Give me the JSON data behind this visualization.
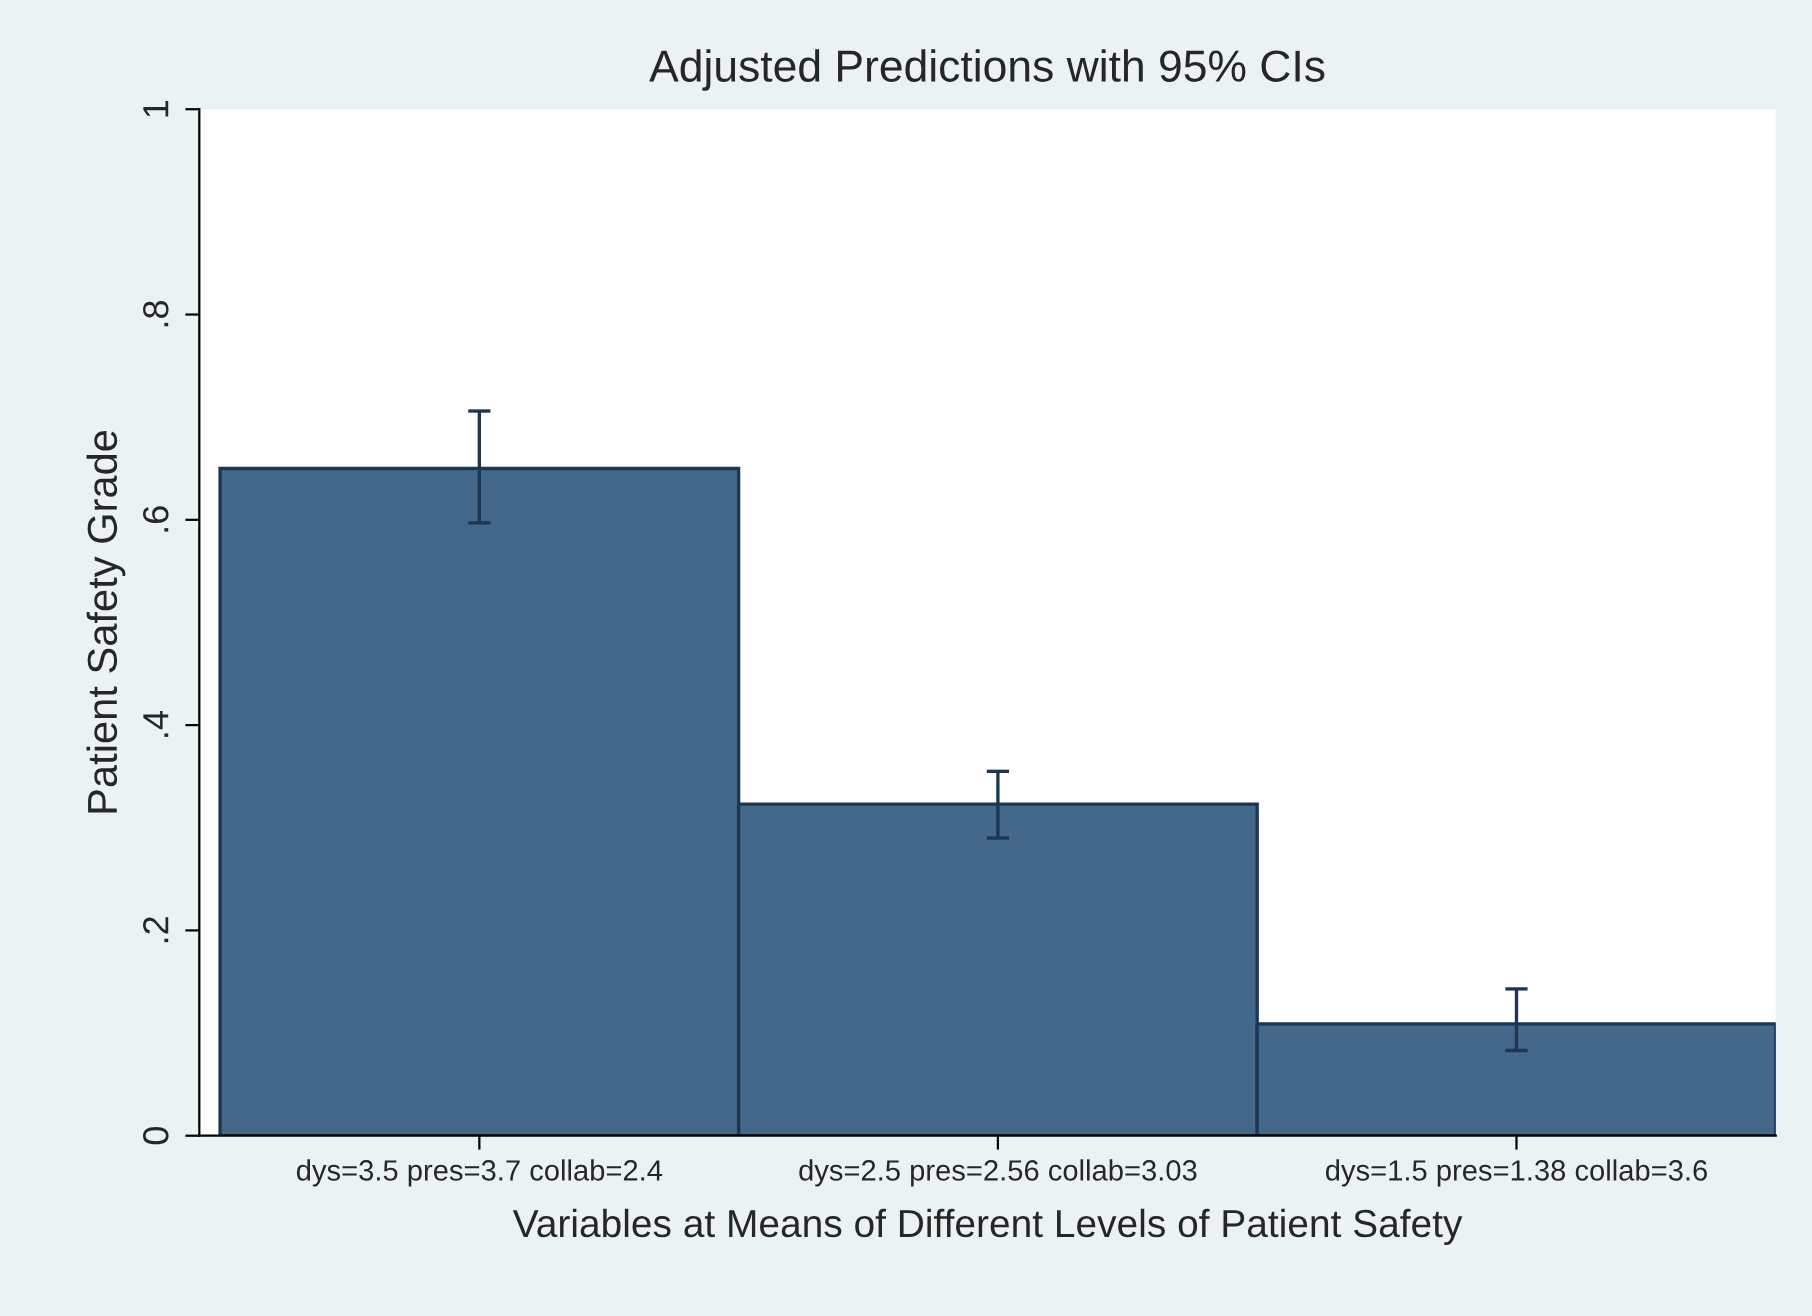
{
  "chart_data": {
    "type": "bar",
    "title": "Adjusted Predictions with 95% CIs",
    "xlabel": "Variables at Means of Different Levels of Patient Safety",
    "ylabel": "Patient Safety Grade",
    "categories": [
      "dys=3.5 pres=3.7 collab=2.4",
      "dys=2.5 pres=2.56 collab=3.03",
      "dys=1.5 pres=1.38 collab=3.6"
    ],
    "values": [
      0.65,
      0.323,
      0.109
    ],
    "errors": [
      [
        0.597,
        0.706
      ],
      [
        0.29,
        0.355
      ],
      [
        0.083,
        0.143
      ]
    ],
    "color": "#44688a",
    "ylim": [
      0,
      1.0
    ],
    "yticks": [
      0,
      {
        "value": 0.2,
        "label": ".2"
      },
      {
        "value": 0.4,
        "label": ".4"
      },
      {
        "value": 0.6,
        "label": ".6"
      },
      {
        "value": 0.8,
        "label": ".8"
      },
      1
    ],
    "grid": false,
    "legend": false
  }
}
